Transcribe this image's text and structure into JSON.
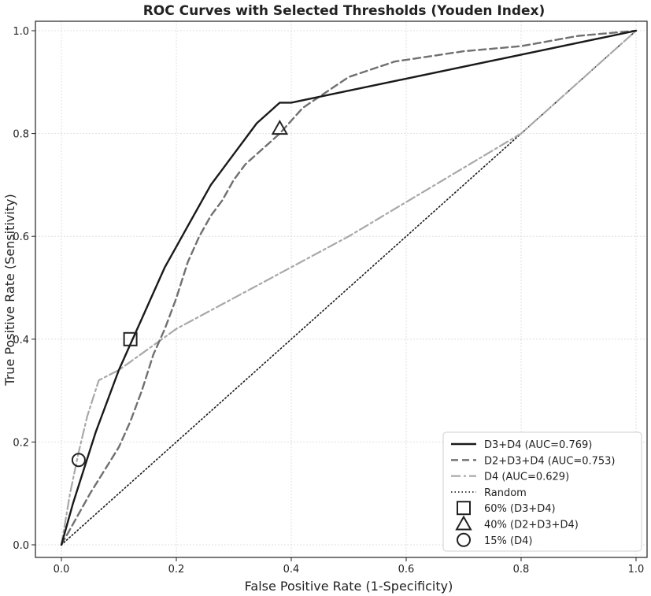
{
  "chart_data": {
    "type": "line",
    "title": "ROC Curves with Selected Thresholds (Youden Index)",
    "xlabel": "False Positive Rate (1-Specificity)",
    "ylabel": "True Positive Rate (Sensitivity)",
    "xlim": [
      0,
      1
    ],
    "ylim": [
      0,
      1
    ],
    "xticks": [
      "0.0",
      "0.2",
      "0.4",
      "0.6",
      "0.8",
      "1.0"
    ],
    "yticks": [
      "0.0",
      "0.2",
      "0.4",
      "0.6",
      "0.8",
      "1.0"
    ],
    "grid": true,
    "legend_position": "lower-right",
    "series": [
      {
        "name": "D3+D4 (AUC=0.769)",
        "color": "#1a1a1a",
        "dash": "solid",
        "x": [
          0,
          0.02,
          0.04,
          0.06,
          0.08,
          0.1,
          0.12,
          0.14,
          0.16,
          0.18,
          0.2,
          0.22,
          0.24,
          0.26,
          0.28,
          0.3,
          0.32,
          0.34,
          0.36,
          0.38,
          0.4,
          1.0
        ],
        "y": [
          0,
          0.08,
          0.15,
          0.22,
          0.28,
          0.34,
          0.39,
          0.44,
          0.49,
          0.54,
          0.58,
          0.62,
          0.66,
          0.7,
          0.73,
          0.76,
          0.79,
          0.82,
          0.84,
          0.86,
          0.86,
          1.0
        ]
      },
      {
        "name": "D2+D3+D4 (AUC=0.753)",
        "color": "#707070",
        "dash": "dashed",
        "x": [
          0,
          0.05,
          0.1,
          0.12,
          0.14,
          0.16,
          0.18,
          0.2,
          0.22,
          0.24,
          0.26,
          0.28,
          0.3,
          0.32,
          0.34,
          0.36,
          0.38,
          0.42,
          0.46,
          0.5,
          0.58,
          0.7,
          0.8,
          0.9,
          1.0
        ],
        "y": [
          0,
          0.1,
          0.19,
          0.24,
          0.3,
          0.37,
          0.42,
          0.48,
          0.55,
          0.6,
          0.64,
          0.67,
          0.71,
          0.74,
          0.76,
          0.78,
          0.8,
          0.85,
          0.88,
          0.91,
          0.94,
          0.96,
          0.97,
          0.99,
          1.0
        ]
      },
      {
        "name": "D4 (AUC=0.629)",
        "color": "#a8a8a8",
        "dash": "dashdot",
        "x": [
          0,
          0.015,
          0.03,
          0.045,
          0.065,
          0.1,
          0.2,
          0.35,
          0.5,
          0.65,
          0.8,
          1.0
        ],
        "y": [
          0,
          0.1,
          0.18,
          0.25,
          0.32,
          0.34,
          0.42,
          0.51,
          0.6,
          0.7,
          0.8,
          1.0
        ]
      },
      {
        "name": "Random",
        "color": "#1a1a1a",
        "dash": "dotted",
        "x": [
          0,
          1
        ],
        "y": [
          0,
          1
        ]
      }
    ],
    "markers": [
      {
        "name": "60% (D3+D4)",
        "shape": "square",
        "x": 0.12,
        "y": 0.4
      },
      {
        "name": "40% (D2+D3+D4)",
        "shape": "triangle",
        "x": 0.38,
        "y": 0.81
      },
      {
        "name": "15% (D4)",
        "shape": "circle",
        "x": 0.03,
        "y": 0.165
      }
    ]
  }
}
